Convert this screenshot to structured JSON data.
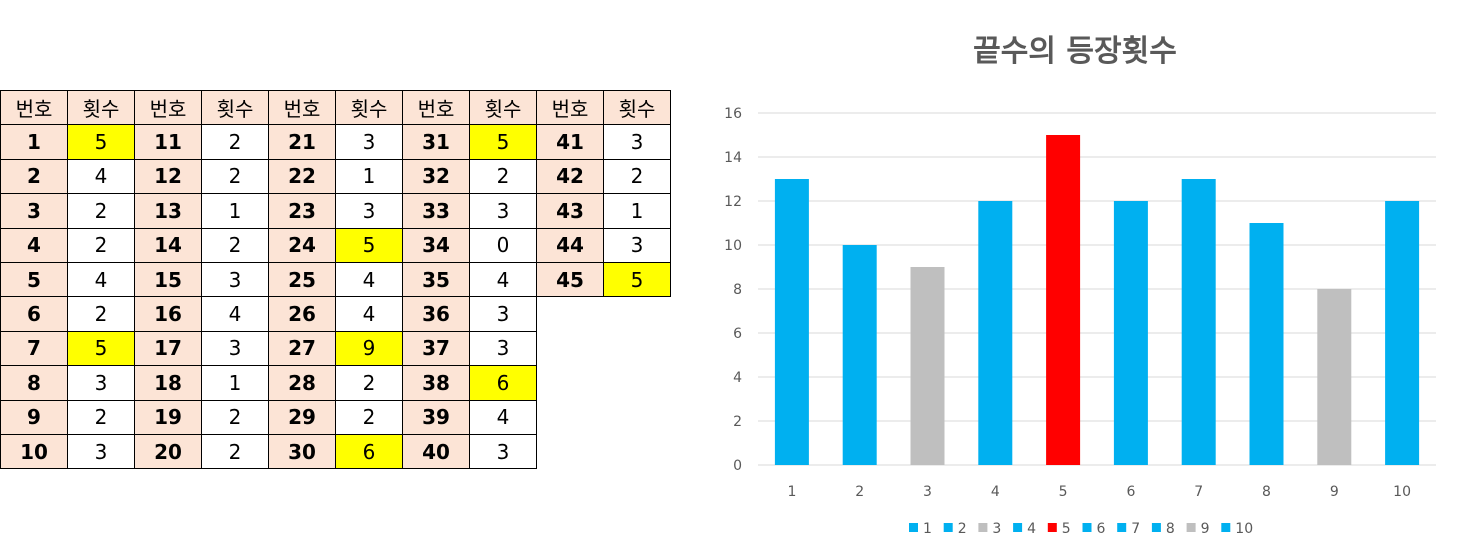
{
  "table": {
    "header_number": "번호",
    "header_count": "횟수",
    "columns": [
      {
        "rows": [
          {
            "n": "1",
            "c": "5",
            "hl": true
          },
          {
            "n": "2",
            "c": "4",
            "hl": false
          },
          {
            "n": "3",
            "c": "2",
            "hl": false
          },
          {
            "n": "4",
            "c": "2",
            "hl": false
          },
          {
            "n": "5",
            "c": "4",
            "hl": false
          },
          {
            "n": "6",
            "c": "2",
            "hl": false
          },
          {
            "n": "7",
            "c": "5",
            "hl": true
          },
          {
            "n": "8",
            "c": "3",
            "hl": false
          },
          {
            "n": "9",
            "c": "2",
            "hl": false
          },
          {
            "n": "10",
            "c": "3",
            "hl": false
          }
        ]
      },
      {
        "rows": [
          {
            "n": "11",
            "c": "2",
            "hl": false
          },
          {
            "n": "12",
            "c": "2",
            "hl": false
          },
          {
            "n": "13",
            "c": "1",
            "hl": false
          },
          {
            "n": "14",
            "c": "2",
            "hl": false
          },
          {
            "n": "15",
            "c": "3",
            "hl": false
          },
          {
            "n": "16",
            "c": "4",
            "hl": false
          },
          {
            "n": "17",
            "c": "3",
            "hl": false
          },
          {
            "n": "18",
            "c": "1",
            "hl": false
          },
          {
            "n": "19",
            "c": "2",
            "hl": false
          },
          {
            "n": "20",
            "c": "2",
            "hl": false
          }
        ]
      },
      {
        "rows": [
          {
            "n": "21",
            "c": "3",
            "hl": false
          },
          {
            "n": "22",
            "c": "1",
            "hl": false
          },
          {
            "n": "23",
            "c": "3",
            "hl": false
          },
          {
            "n": "24",
            "c": "5",
            "hl": true
          },
          {
            "n": "25",
            "c": "4",
            "hl": false
          },
          {
            "n": "26",
            "c": "4",
            "hl": false
          },
          {
            "n": "27",
            "c": "9",
            "hl": true
          },
          {
            "n": "28",
            "c": "2",
            "hl": false
          },
          {
            "n": "29",
            "c": "2",
            "hl": false
          },
          {
            "n": "30",
            "c": "6",
            "hl": true
          }
        ]
      },
      {
        "rows": [
          {
            "n": "31",
            "c": "5",
            "hl": true
          },
          {
            "n": "32",
            "c": "2",
            "hl": false
          },
          {
            "n": "33",
            "c": "3",
            "hl": false
          },
          {
            "n": "34",
            "c": "0",
            "hl": false
          },
          {
            "n": "35",
            "c": "4",
            "hl": false
          },
          {
            "n": "36",
            "c": "3",
            "hl": false
          },
          {
            "n": "37",
            "c": "3",
            "hl": false
          },
          {
            "n": "38",
            "c": "6",
            "hl": true
          },
          {
            "n": "39",
            "c": "4",
            "hl": false
          },
          {
            "n": "40",
            "c": "3",
            "hl": false
          }
        ]
      },
      {
        "rows": [
          {
            "n": "41",
            "c": "3",
            "hl": false
          },
          {
            "n": "42",
            "c": "2",
            "hl": false
          },
          {
            "n": "43",
            "c": "1",
            "hl": false
          },
          {
            "n": "44",
            "c": "3",
            "hl": false
          },
          {
            "n": "45",
            "c": "5",
            "hl": true
          }
        ]
      }
    ],
    "colors": {
      "header_bg": "#fce4d6",
      "highlight_bg": "#ffff00"
    }
  },
  "chart_data": {
    "type": "bar",
    "title": "끝수의 등장횟수",
    "xlabel": "",
    "ylabel": "",
    "categories": [
      "1",
      "2",
      "3",
      "4",
      "5",
      "6",
      "7",
      "8",
      "9",
      "10"
    ],
    "values": [
      13,
      10,
      9,
      12,
      15,
      12,
      13,
      11,
      8,
      12
    ],
    "bar_colors": [
      "#00b0f0",
      "#00b0f0",
      "#bfbfbf",
      "#00b0f0",
      "#ff0000",
      "#00b0f0",
      "#00b0f0",
      "#00b0f0",
      "#bfbfbf",
      "#00b0f0"
    ],
    "ylim": [
      0,
      16
    ],
    "yticks": [
      "0",
      "2",
      "4",
      "6",
      "8",
      "10",
      "12",
      "14",
      "16"
    ],
    "grid": true,
    "legend_placement": "bottom",
    "legend": [
      "1",
      "2",
      "3",
      "4",
      "5",
      "6",
      "7",
      "8",
      "9",
      "10"
    ],
    "colors": {
      "default_bar": "#00b0f0",
      "low_bar": "#bfbfbf",
      "max_bar": "#ff0000",
      "grid": "#d9d9d9",
      "axis_text": "#595959"
    }
  }
}
